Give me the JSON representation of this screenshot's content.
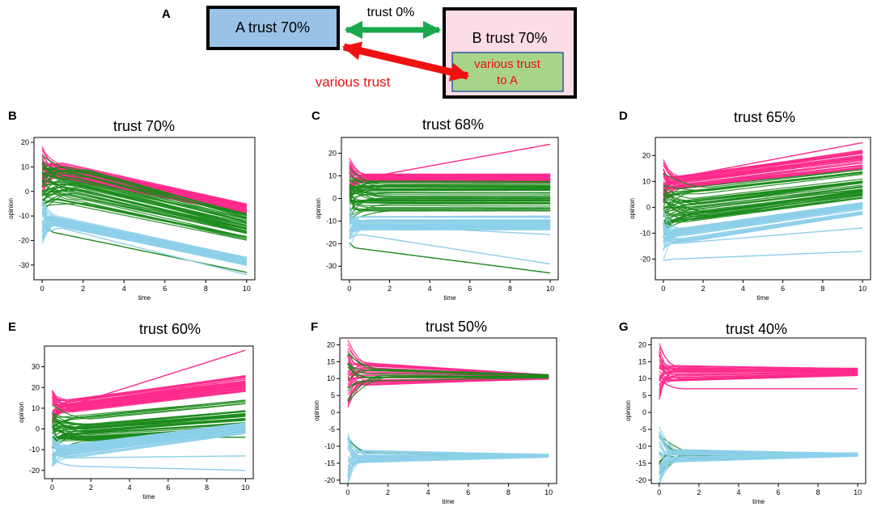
{
  "figure": {
    "colors": {
      "pink": "#ff2a8c",
      "green": "#1a8a1a",
      "blue": "#8dcfea",
      "a_box": "#99c2e6",
      "b_box": "#fcdde5",
      "b_inner": "#a8d48a",
      "arrow_green": "#1aa84e",
      "arrow_red": "#ee1111"
    }
  },
  "diagram": {
    "panel_label": "A",
    "a_box_label": "A trust 70%",
    "b_box_label": "B trust 70%",
    "top_arrow_label": "trust 0%",
    "bottom_arrow_label": "various trust",
    "inner_line1": "various trust",
    "inner_line2": "to A"
  },
  "chart_data": [
    {
      "panel": "B",
      "type": "line",
      "title": "trust 70%",
      "xlabel": "time",
      "ylabel": "opinion",
      "xlim": [
        -0.4,
        10.4
      ],
      "ylim": [
        -36,
        22
      ],
      "xticks": [
        0,
        2,
        4,
        6,
        8,
        10
      ],
      "yticks": [
        -30,
        -20,
        -10,
        0,
        10,
        20
      ],
      "series": [
        {
          "name": "pink",
          "color": "#ff2a8c",
          "band_start": [
            6,
            12
          ],
          "band_end": [
            -9,
            -5
          ],
          "count": 40,
          "outliers": []
        },
        {
          "name": "green",
          "color": "#1a8a1a",
          "band_start": [
            -5,
            10
          ],
          "band_end": [
            -20,
            -9
          ],
          "count": 45,
          "outliers": [
            [
              -17,
              -33
            ]
          ]
        },
        {
          "name": "blue",
          "color": "#8dcfea",
          "band_start": [
            -14,
            -10
          ],
          "band_end": [
            -30,
            -27
          ],
          "count": 40,
          "outliers": [
            [
              -15,
              -34
            ]
          ]
        }
      ]
    },
    {
      "panel": "C",
      "type": "line",
      "title": "trust 68%",
      "xlabel": "time",
      "ylabel": "opinion",
      "xlim": [
        -0.4,
        10.4
      ],
      "ylim": [
        -36,
        27
      ],
      "xticks": [
        0,
        2,
        4,
        6,
        8,
        10
      ],
      "yticks": [
        -30,
        -20,
        -10,
        0,
        10,
        20
      ],
      "series": [
        {
          "name": "pink",
          "color": "#ff2a8c",
          "band_start": [
            7,
            11
          ],
          "band_end": [
            7,
            11
          ],
          "count": 40,
          "outliers": [
            [
              10,
              24
            ]
          ]
        },
        {
          "name": "green",
          "color": "#1a8a1a",
          "band_start": [
            -6,
            8
          ],
          "band_end": [
            -6,
            8
          ],
          "count": 45,
          "outliers": [
            [
              -22,
              -33
            ]
          ]
        },
        {
          "name": "blue",
          "color": "#8dcfea",
          "band_start": [
            -14,
            -8
          ],
          "band_end": [
            -14,
            -8
          ],
          "count": 40,
          "outliers": [
            [
              -16,
              -29
            ],
            [
              -12,
              -16
            ]
          ]
        }
      ]
    },
    {
      "panel": "D",
      "type": "line",
      "title": "trust 65%",
      "xlabel": "time",
      "ylabel": "opinion",
      "xlim": [
        -0.4,
        10.4
      ],
      "ylim": [
        -28,
        27
      ],
      "xticks": [
        0,
        2,
        4,
        6,
        8,
        10
      ],
      "yticks": [
        -20,
        -10,
        0,
        10,
        20
      ],
      "series": [
        {
          "name": "pink",
          "color": "#ff2a8c",
          "band_start": [
            7,
            12
          ],
          "band_end": [
            15,
            22
          ],
          "count": 40,
          "outliers": [
            [
              12,
              25
            ]
          ]
        },
        {
          "name": "green",
          "color": "#1a8a1a",
          "band_start": [
            -6,
            8
          ],
          "band_end": [
            3,
            15
          ],
          "count": 45,
          "outliers": []
        },
        {
          "name": "blue",
          "color": "#8dcfea",
          "band_start": [
            -14,
            -8
          ],
          "band_end": [
            -3,
            2
          ],
          "count": 40,
          "outliers": [
            [
              -20,
              -17
            ],
            [
              -14,
              -8
            ]
          ]
        }
      ]
    },
    {
      "panel": "E",
      "type": "line",
      "title": "trust 60%",
      "xlabel": "time",
      "ylabel": "opinion",
      "xlim": [
        -0.4,
        10.4
      ],
      "ylim": [
        -24,
        40
      ],
      "xticks": [
        0,
        2,
        4,
        6,
        8,
        10
      ],
      "yticks": [
        -20,
        -10,
        0,
        10,
        20,
        30
      ],
      "series": [
        {
          "name": "pink",
          "color": "#ff2a8c",
          "band_start": [
            8,
            14
          ],
          "band_end": [
            18,
            26
          ],
          "count": 40,
          "outliers": [
            [
              12,
              38
            ]
          ]
        },
        {
          "name": "green",
          "color": "#1a8a1a",
          "band_start": [
            -6,
            6
          ],
          "band_end": [
            -2,
            14
          ],
          "count": 45,
          "outliers": [
            [
              -4,
              -4
            ]
          ]
        },
        {
          "name": "blue",
          "color": "#8dcfea",
          "band_start": [
            -14,
            -8
          ],
          "band_end": [
            -2,
            3
          ],
          "count": 40,
          "outliers": [
            [
              -18,
              -20
            ],
            [
              -14,
              -13
            ]
          ]
        }
      ]
    },
    {
      "panel": "F",
      "type": "line",
      "title": "trust 50%",
      "xlabel": "time",
      "ylabel": "opinion",
      "xlim": [
        -0.4,
        10.4
      ],
      "ylim": [
        -21,
        22
      ],
      "xticks": [
        0,
        2,
        4,
        6,
        8,
        10
      ],
      "yticks": [
        -20,
        -15,
        -10,
        -5,
        0,
        5,
        10,
        15,
        20
      ],
      "series": [
        {
          "name": "pink",
          "color": "#ff2a8c",
          "band_start": [
            8,
            15
          ],
          "band_end": [
            10,
            11
          ],
          "count": 35,
          "outliers": [
            [
              13,
              11
            ]
          ]
        },
        {
          "name": "green",
          "color": "#1a8a1a",
          "band_start": [
            9,
            13
          ],
          "band_end": [
            10,
            11
          ],
          "count": 12,
          "outliers": [
            [
              -12,
              -13
            ]
          ]
        },
        {
          "name": "blue",
          "color": "#8dcfea",
          "band_start": [
            -15,
            -11
          ],
          "band_end": [
            -13,
            -12.6
          ],
          "count": 35,
          "outliers": []
        }
      ]
    },
    {
      "panel": "G",
      "type": "line",
      "title": "trust 40%",
      "xlabel": "time",
      "ylabel": "opinion",
      "xlim": [
        -0.4,
        10.4
      ],
      "ylim": [
        -21,
        22
      ],
      "xticks": [
        0,
        2,
        4,
        6,
        8,
        10
      ],
      "yticks": [
        -20,
        -15,
        -10,
        -5,
        0,
        5,
        10,
        15,
        20
      ],
      "series": [
        {
          "name": "pink",
          "color": "#ff2a8c",
          "band_start": [
            9,
            14
          ],
          "band_end": [
            11,
            13
          ],
          "count": 35,
          "outliers": [
            [
              7,
              7
            ]
          ]
        },
        {
          "name": "green",
          "color": "#1a8a1a",
          "band_start": [
            -14,
            -11
          ],
          "band_end": [
            -12.6,
            -12.2
          ],
          "count": 12,
          "outliers": []
        },
        {
          "name": "blue",
          "color": "#8dcfea",
          "band_start": [
            -15,
            -11
          ],
          "band_end": [
            -12.8,
            -12.2
          ],
          "count": 35,
          "outliers": []
        }
      ]
    }
  ]
}
